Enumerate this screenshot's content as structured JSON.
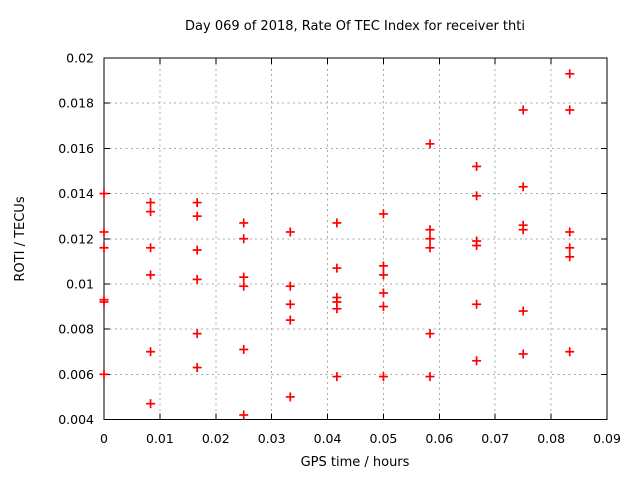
{
  "chart_data": {
    "type": "scatter",
    "title": "Day 069 of 2018, Rate Of TEC Index for receiver thti",
    "xlabel": "GPS time / hours",
    "ylabel": "ROTI / TECUs",
    "xlim": [
      0,
      0.09
    ],
    "ylim": [
      0.004,
      0.02
    ],
    "grid": true,
    "legend_position": "none",
    "marker": "plus",
    "colors": {
      "marker": "#ff0000",
      "grid": "#a8a8a8",
      "axis": "#000000",
      "background": "#ffffff",
      "text": "#000000"
    },
    "xticks": {
      "values": [
        0,
        0.01,
        0.02,
        0.03,
        0.04,
        0.05,
        0.06,
        0.07,
        0.08,
        0.09
      ],
      "labels": [
        "0",
        "0.01",
        "0.02",
        "0.03",
        "0.04",
        "0.05",
        "0.06",
        "0.07",
        "0.08",
        "0.09"
      ]
    },
    "yticks": {
      "values": [
        0.004,
        0.006,
        0.008,
        0.01,
        0.012,
        0.014,
        0.016,
        0.018,
        0.02
      ],
      "labels": [
        "0.004",
        "0.006",
        "0.008",
        "0.01",
        "0.012",
        "0.014",
        "0.016",
        "0.018",
        "0.02"
      ]
    },
    "series": [
      {
        "name": "ROTI",
        "color": "#ff0000",
        "points": [
          [
            0,
            0.014
          ],
          [
            0,
            0.0123
          ],
          [
            0,
            0.0116
          ],
          [
            0,
            0.0093
          ],
          [
            0,
            0.0092
          ],
          [
            0,
            0.006
          ],
          [
            0.00833,
            0.0136
          ],
          [
            0.00833,
            0.0132
          ],
          [
            0.00833,
            0.0116
          ],
          [
            0.00833,
            0.0104
          ],
          [
            0.00833,
            0.007
          ],
          [
            0.00833,
            0.0047
          ],
          [
            0.01667,
            0.0136
          ],
          [
            0.01667,
            0.013
          ],
          [
            0.01667,
            0.0115
          ],
          [
            0.01667,
            0.0102
          ],
          [
            0.01667,
            0.0078
          ],
          [
            0.01667,
            0.0063
          ],
          [
            0.025,
            0.0127
          ],
          [
            0.025,
            0.012
          ],
          [
            0.025,
            0.0103
          ],
          [
            0.025,
            0.0099
          ],
          [
            0.025,
            0.0071
          ],
          [
            0.025,
            0.0042
          ],
          [
            0.03333,
            0.0123
          ],
          [
            0.03333,
            0.0099
          ],
          [
            0.03333,
            0.0091
          ],
          [
            0.03333,
            0.0084
          ],
          [
            0.03333,
            0.005
          ],
          [
            0.04167,
            0.0127
          ],
          [
            0.04167,
            0.0107
          ],
          [
            0.04167,
            0.0094
          ],
          [
            0.04167,
            0.0092
          ],
          [
            0.04167,
            0.0089
          ],
          [
            0.04167,
            0.0059
          ],
          [
            0.05,
            0.0131
          ],
          [
            0.05,
            0.0108
          ],
          [
            0.05,
            0.0104
          ],
          [
            0.05,
            0.0096
          ],
          [
            0.05,
            0.009
          ],
          [
            0.05,
            0.0059
          ],
          [
            0.05833,
            0.0162
          ],
          [
            0.05833,
            0.0124
          ],
          [
            0.05833,
            0.012
          ],
          [
            0.05833,
            0.0116
          ],
          [
            0.05833,
            0.0078
          ],
          [
            0.05833,
            0.0059
          ],
          [
            0.06667,
            0.0152
          ],
          [
            0.06667,
            0.0139
          ],
          [
            0.06667,
            0.0119
          ],
          [
            0.06667,
            0.0117
          ],
          [
            0.06667,
            0.0091
          ],
          [
            0.06667,
            0.0066
          ],
          [
            0.075,
            0.0177
          ],
          [
            0.075,
            0.0143
          ],
          [
            0.075,
            0.0126
          ],
          [
            0.075,
            0.0124
          ],
          [
            0.075,
            0.0088
          ],
          [
            0.075,
            0.0069
          ],
          [
            0.08333,
            0.0193
          ],
          [
            0.08333,
            0.0177
          ],
          [
            0.08333,
            0.0123
          ],
          [
            0.08333,
            0.0116
          ],
          [
            0.08333,
            0.0112
          ],
          [
            0.08333,
            0.007
          ]
        ]
      }
    ]
  }
}
